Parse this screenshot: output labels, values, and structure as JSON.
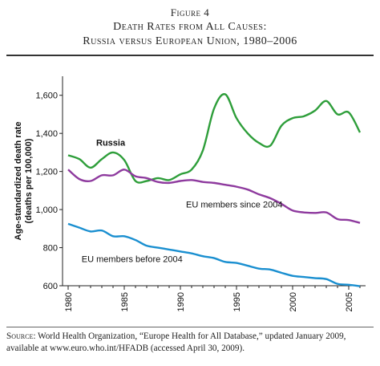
{
  "figure_label": "Figure 4",
  "title_line1": "Death Rates from All Causes:",
  "title_line2": "Russia versus European Union, 1980–2006",
  "source": {
    "prefix": "Source:",
    "text": " World Health Organization, “Europe Health for All Database,” updated January 2009, available at www.euro.who.int/HFADB (accessed April 30, 2009)."
  },
  "chart_data": {
    "type": "line",
    "xlabel": "",
    "ylabel_line1": "Age-standardized death rate",
    "ylabel_line2": "(deaths per 100,000)",
    "xlim": [
      1979.5,
      2006.5
    ],
    "ylim": [
      600,
      1700
    ],
    "xticks": [
      1980,
      1985,
      1990,
      1995,
      2000,
      2005
    ],
    "yticks": [
      600,
      800,
      1000,
      1200,
      1400,
      1600
    ],
    "ytick_labels": [
      "600",
      "800",
      "1,000",
      "1,200",
      "1,400",
      "1,600"
    ],
    "grid": false,
    "series": [
      {
        "name": "Russia",
        "label_bold": true,
        "color": "#2e9e3a",
        "x": [
          1980,
          1981,
          1982,
          1983,
          1984,
          1985,
          1986,
          1987,
          1988,
          1989,
          1990,
          1991,
          1992,
          1993,
          1994,
          1995,
          1996,
          1997,
          1998,
          1999,
          2000,
          2001,
          2002,
          2003,
          2004,
          2005,
          2006
        ],
        "y": [
          1285,
          1265,
          1220,
          1265,
          1300,
          1260,
          1150,
          1150,
          1165,
          1155,
          1185,
          1210,
          1310,
          1530,
          1605,
          1480,
          1400,
          1350,
          1335,
          1440,
          1480,
          1490,
          1520,
          1570,
          1500,
          1510,
          1405
        ]
      },
      {
        "name": "EU members since 2004",
        "label_bold": false,
        "color": "#8e3a9e",
        "x": [
          1980,
          1981,
          1982,
          1983,
          1984,
          1985,
          1986,
          1987,
          1988,
          1989,
          1990,
          1991,
          1992,
          1993,
          1994,
          1995,
          1996,
          1997,
          1998,
          1999,
          2000,
          2001,
          2002,
          2003,
          2004,
          2005,
          2006
        ],
        "y": [
          1210,
          1160,
          1150,
          1180,
          1180,
          1210,
          1175,
          1165,
          1145,
          1140,
          1150,
          1155,
          1145,
          1140,
          1130,
          1120,
          1105,
          1080,
          1060,
          1030,
          995,
          985,
          982,
          985,
          950,
          945,
          930
        ]
      },
      {
        "name": "EU members before 2004",
        "label_bold": false,
        "color": "#1a8fd0",
        "x": [
          1980,
          1981,
          1982,
          1983,
          1984,
          1985,
          1986,
          1987,
          1988,
          1989,
          1990,
          1991,
          1992,
          1993,
          1994,
          1995,
          1996,
          1997,
          1998,
          1999,
          2000,
          2001,
          2002,
          2003,
          2004,
          2005,
          2006
        ],
        "y": [
          925,
          905,
          885,
          890,
          860,
          860,
          840,
          810,
          800,
          790,
          780,
          770,
          755,
          745,
          725,
          720,
          705,
          690,
          685,
          668,
          652,
          646,
          640,
          635,
          610,
          605,
          598
        ]
      }
    ]
  }
}
